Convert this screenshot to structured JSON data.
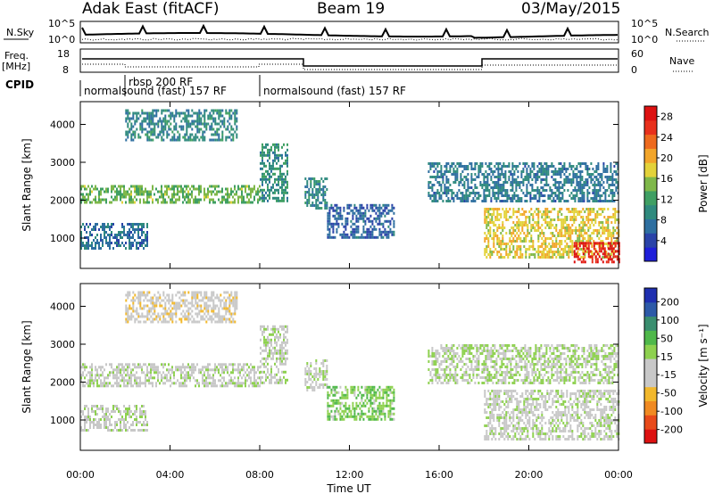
{
  "header": {
    "radar": "Adak East (fitACF)",
    "beam": "Beam 19",
    "date": "03/May/2015"
  },
  "side_labels": {
    "nsky": "N.Sky",
    "nsearch": "N.Search",
    "freq": "Freq.",
    "freq_unit": "[MHz]",
    "nave": "Nave",
    "cpid": "CPID"
  },
  "panels": {
    "nsky_axis": {
      "top": "10^5",
      "bottom": "10^0"
    },
    "freq_axis": {
      "left_ticks": [
        "18",
        "8"
      ],
      "right_ticks": [
        "60",
        "0"
      ]
    },
    "cpid_labels": [
      "normalsound (fast) 157 RF",
      "rbsp 200 RF",
      "normalsound (fast) 157 RF"
    ]
  },
  "colors": {
    "power_scale": [
      "#1f1fd9",
      "#2a43a8",
      "#2e6fa0",
      "#2f8a7e",
      "#3f9f63",
      "#7fb84a",
      "#e3d23a",
      "#f2a52a",
      "#ee6a1e",
      "#e8301c",
      "#dd1111"
    ],
    "velocity_scale": [
      "#dd1111",
      "#e84a1a",
      "#f08a22",
      "#f2b82c",
      "#c8c8c8",
      "#c8c8c8",
      "#8ed14f",
      "#4fb84a",
      "#3a8e6f",
      "#2d5aa8",
      "#1f2fb0"
    ]
  },
  "chart_data": [
    {
      "type": "heatmap",
      "title": "",
      "quantity": "Power",
      "xlabel": "Time UT",
      "ylabel": "Slant Range [km]",
      "x_ticks": [
        "00:00",
        "04:00",
        "08:00",
        "12:00",
        "16:00",
        "20:00",
        "00:00"
      ],
      "y_ticks": [
        "1000",
        "2000",
        "3000",
        "4000"
      ],
      "xlim_hours": [
        0,
        24
      ],
      "ylim_km": [
        200,
        4600
      ],
      "colorbar": {
        "label": "Power [dB]",
        "ticks": [
          "4",
          "8",
          "12",
          "16",
          "20",
          "24",
          "28"
        ],
        "range": [
          0,
          30
        ]
      },
      "echo_regions": [
        {
          "t0": 0.0,
          "t1": 8.0,
          "r0": 1950,
          "r1": 2400,
          "value": 14
        },
        {
          "t0": 2.0,
          "t1": 7.0,
          "r0": 3600,
          "r1": 4400,
          "value": 9
        },
        {
          "t0": 0.0,
          "t1": 3.0,
          "r0": 700,
          "r1": 1400,
          "value": 7
        },
        {
          "t0": 8.0,
          "t1": 9.2,
          "r0": 2000,
          "r1": 3500,
          "value": 10
        },
        {
          "t0": 10.0,
          "t1": 11.0,
          "r0": 1800,
          "r1": 2600,
          "value": 9
        },
        {
          "t0": 11.0,
          "t1": 14.0,
          "r0": 1000,
          "r1": 1900,
          "value": 6
        },
        {
          "t0": 15.5,
          "t1": 24.0,
          "r0": 2000,
          "r1": 3000,
          "value": 8
        },
        {
          "t0": 18.0,
          "t1": 24.0,
          "r0": 500,
          "r1": 1800,
          "value": 18
        },
        {
          "t0": 22.0,
          "t1": 24.0,
          "r0": 400,
          "r1": 900,
          "value": 28
        }
      ]
    },
    {
      "type": "heatmap",
      "title": "",
      "quantity": "Velocity",
      "xlabel": "Time UT",
      "ylabel": "Slant Range [km]",
      "x_ticks": [
        "00:00",
        "04:00",
        "08:00",
        "12:00",
        "16:00",
        "20:00",
        "00:00"
      ],
      "y_ticks": [
        "1000",
        "2000",
        "3000",
        "4000"
      ],
      "xlim_hours": [
        0,
        24
      ],
      "ylim_km": [
        200,
        4600
      ],
      "colorbar": {
        "label": "Velocity [m s⁻¹]",
        "ticks": [
          "200",
          "100",
          "50",
          "15",
          "-15",
          "-50",
          "-100",
          "-200"
        ],
        "range": [
          -250,
          250
        ]
      },
      "echo_regions": [
        {
          "t0": 0.0,
          "t1": 8.0,
          "r0": 1900,
          "r1": 2500,
          "value": 0
        },
        {
          "t0": 2.0,
          "t1": 7.0,
          "r0": 3600,
          "r1": 4400,
          "value": -40
        },
        {
          "t0": 0.0,
          "t1": 3.0,
          "r0": 700,
          "r1": 1400,
          "value": 0
        },
        {
          "t0": 8.0,
          "t1": 9.2,
          "r0": 2000,
          "r1": 3500,
          "value": 0
        },
        {
          "t0": 10.0,
          "t1": 11.0,
          "r0": 1800,
          "r1": 2600,
          "value": 0
        },
        {
          "t0": 11.0,
          "t1": 14.0,
          "r0": 1000,
          "r1": 1900,
          "value": 60
        },
        {
          "t0": 15.5,
          "t1": 24.0,
          "r0": 2000,
          "r1": 3000,
          "value": 20
        },
        {
          "t0": 18.0,
          "t1": 24.0,
          "r0": 500,
          "r1": 1800,
          "value": 0
        }
      ]
    }
  ]
}
